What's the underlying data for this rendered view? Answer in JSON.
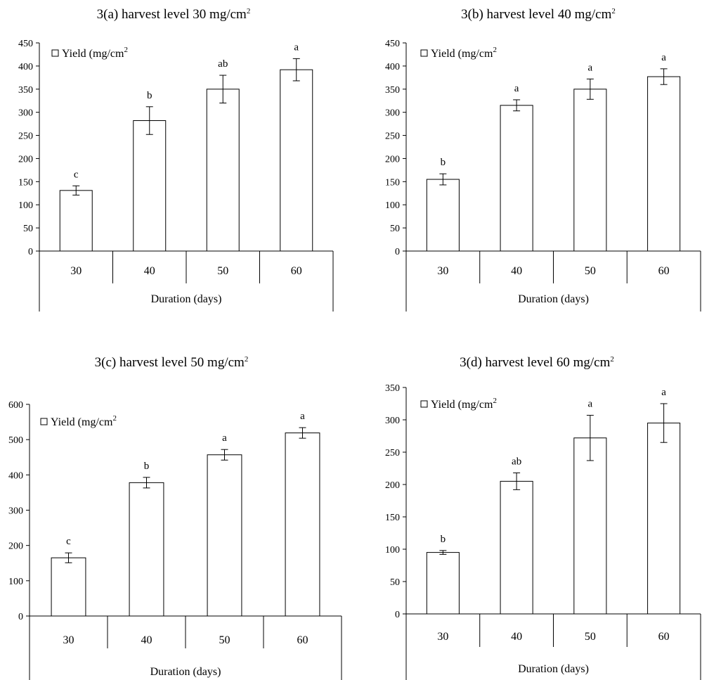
{
  "chart_data": [
    {
      "type": "bar",
      "title": "3(a) harvest level 30 mg/cm",
      "title_superscript": "2",
      "legend": "Yield (mg/cm",
      "legend_superscript": "2",
      "legend_position": "top-left",
      "xlabel": "Duration (days)",
      "ylabel": "",
      "categories": [
        "30",
        "40",
        "50",
        "60"
      ],
      "series": [
        {
          "values": [
            131,
            282,
            350,
            392
          ],
          "errors": [
            10,
            30,
            30,
            24
          ],
          "labels": [
            "c",
            "b",
            "ab",
            "a"
          ]
        }
      ],
      "ylim": [
        0,
        450
      ],
      "yticks": [
        0,
        50,
        100,
        150,
        200,
        250,
        300,
        350,
        400,
        450
      ],
      "grid": false
    },
    {
      "type": "bar",
      "title": "3(b) harvest level 40 mg/cm",
      "title_superscript": "2",
      "legend": "Yield (mg/cm",
      "legend_superscript": "2",
      "legend_position": "top-left",
      "xlabel": "Duration (days)",
      "ylabel": "",
      "categories": [
        "30",
        "40",
        "50",
        "60"
      ],
      "series": [
        {
          "values": [
            155,
            315,
            350,
            377
          ],
          "errors": [
            12,
            12,
            22,
            17
          ],
          "labels": [
            "b",
            "a",
            "a",
            "a"
          ]
        }
      ],
      "ylim": [
        0,
        450
      ],
      "yticks": [
        0,
        50,
        100,
        150,
        200,
        250,
        300,
        350,
        400,
        450
      ],
      "grid": false
    },
    {
      "type": "bar",
      "title": "3(c) harvest level 50 mg/cm",
      "title_superscript": "2",
      "legend": "Yield (mg/cm",
      "legend_superscript": "2",
      "legend_position": "top-left",
      "xlabel": "Duration (days)",
      "ylabel": "",
      "categories": [
        "30",
        "40",
        "50",
        "60"
      ],
      "series": [
        {
          "values": [
            165,
            378,
            457,
            519
          ],
          "errors": [
            14,
            15,
            15,
            15
          ],
          "labels": [
            "c",
            "b",
            "a",
            "a"
          ]
        }
      ],
      "ylim": [
        0,
        600
      ],
      "yticks": [
        0,
        100,
        200,
        300,
        400,
        500,
        600
      ],
      "grid": false
    },
    {
      "type": "bar",
      "title": "3(d) harvest level 60 mg/cm",
      "title_superscript": "2",
      "legend": "Yield (mg/cm",
      "legend_superscript": "2",
      "legend_position": "top-left",
      "xlabel": "Duration (days)",
      "ylabel": "",
      "categories": [
        "30",
        "40",
        "50",
        "60"
      ],
      "series": [
        {
          "values": [
            95,
            205,
            272,
            295
          ],
          "errors": [
            3,
            13,
            35,
            30
          ],
          "labels": [
            "b",
            "ab",
            "a",
            "a"
          ]
        }
      ],
      "ylim": [
        0,
        350
      ],
      "yticks": [
        0,
        50,
        100,
        150,
        200,
        250,
        300,
        350
      ],
      "grid": false
    }
  ]
}
